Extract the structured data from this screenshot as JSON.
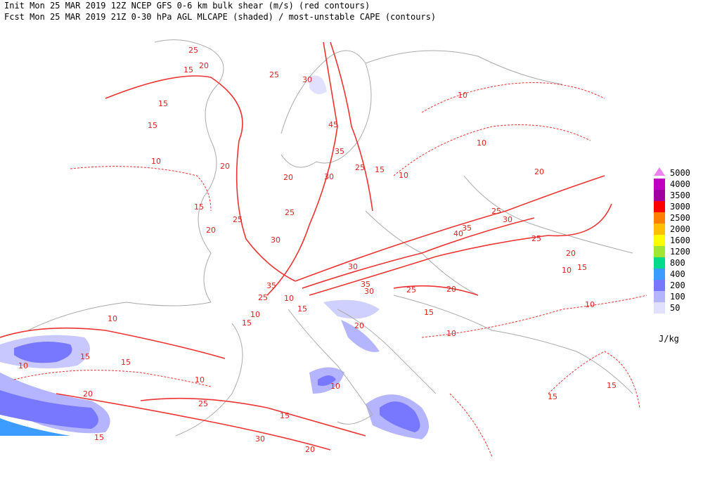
{
  "header": {
    "line1": "Init  Mon 25 MAR 2019 12Z  NCEP GFS 0-6 km bulk shear (m/s) (red contours)",
    "line2": "Fcst Mon 25 MAR 2019 21Z  0-30 hPa AGL MLCAPE (shaded) / most-unstable CAPE (contours)"
  },
  "contour_labels": [
    25,
    20,
    15,
    25,
    30,
    15,
    15,
    10,
    20,
    20,
    15,
    25,
    20,
    25,
    30,
    45,
    35,
    30,
    25,
    15,
    10,
    10,
    10,
    20,
    25,
    30,
    40,
    35,
    25,
    20,
    10,
    15,
    30,
    35,
    30,
    25,
    20,
    15,
    35,
    25,
    10,
    10,
    15,
    10,
    10,
    15,
    15,
    10,
    20,
    25,
    10,
    15,
    30,
    20,
    15,
    10,
    10,
    15,
    15,
    20,
    15
  ],
  "legend": {
    "items": [
      {
        "label": "5000",
        "color": "#ee82ee"
      },
      {
        "label": "4000",
        "color": "#c000c0"
      },
      {
        "label": "3500",
        "color": "#a000a0"
      },
      {
        "label": "3000",
        "color": "#ff0000"
      },
      {
        "label": "2500",
        "color": "#ff8000"
      },
      {
        "label": "2000",
        "color": "#ffc000"
      },
      {
        "label": "1600",
        "color": "#ffff00"
      },
      {
        "label": "1200",
        "color": "#a0e632"
      },
      {
        "label": "800",
        "color": "#00dc8c"
      },
      {
        "label": "400",
        "color": "#3c9cff"
      },
      {
        "label": "200",
        "color": "#7878ff"
      },
      {
        "label": "100",
        "color": "#b4b4ff"
      },
      {
        "label": "50",
        "color": "#e1e1ff"
      }
    ],
    "unit": "J/kg"
  }
}
